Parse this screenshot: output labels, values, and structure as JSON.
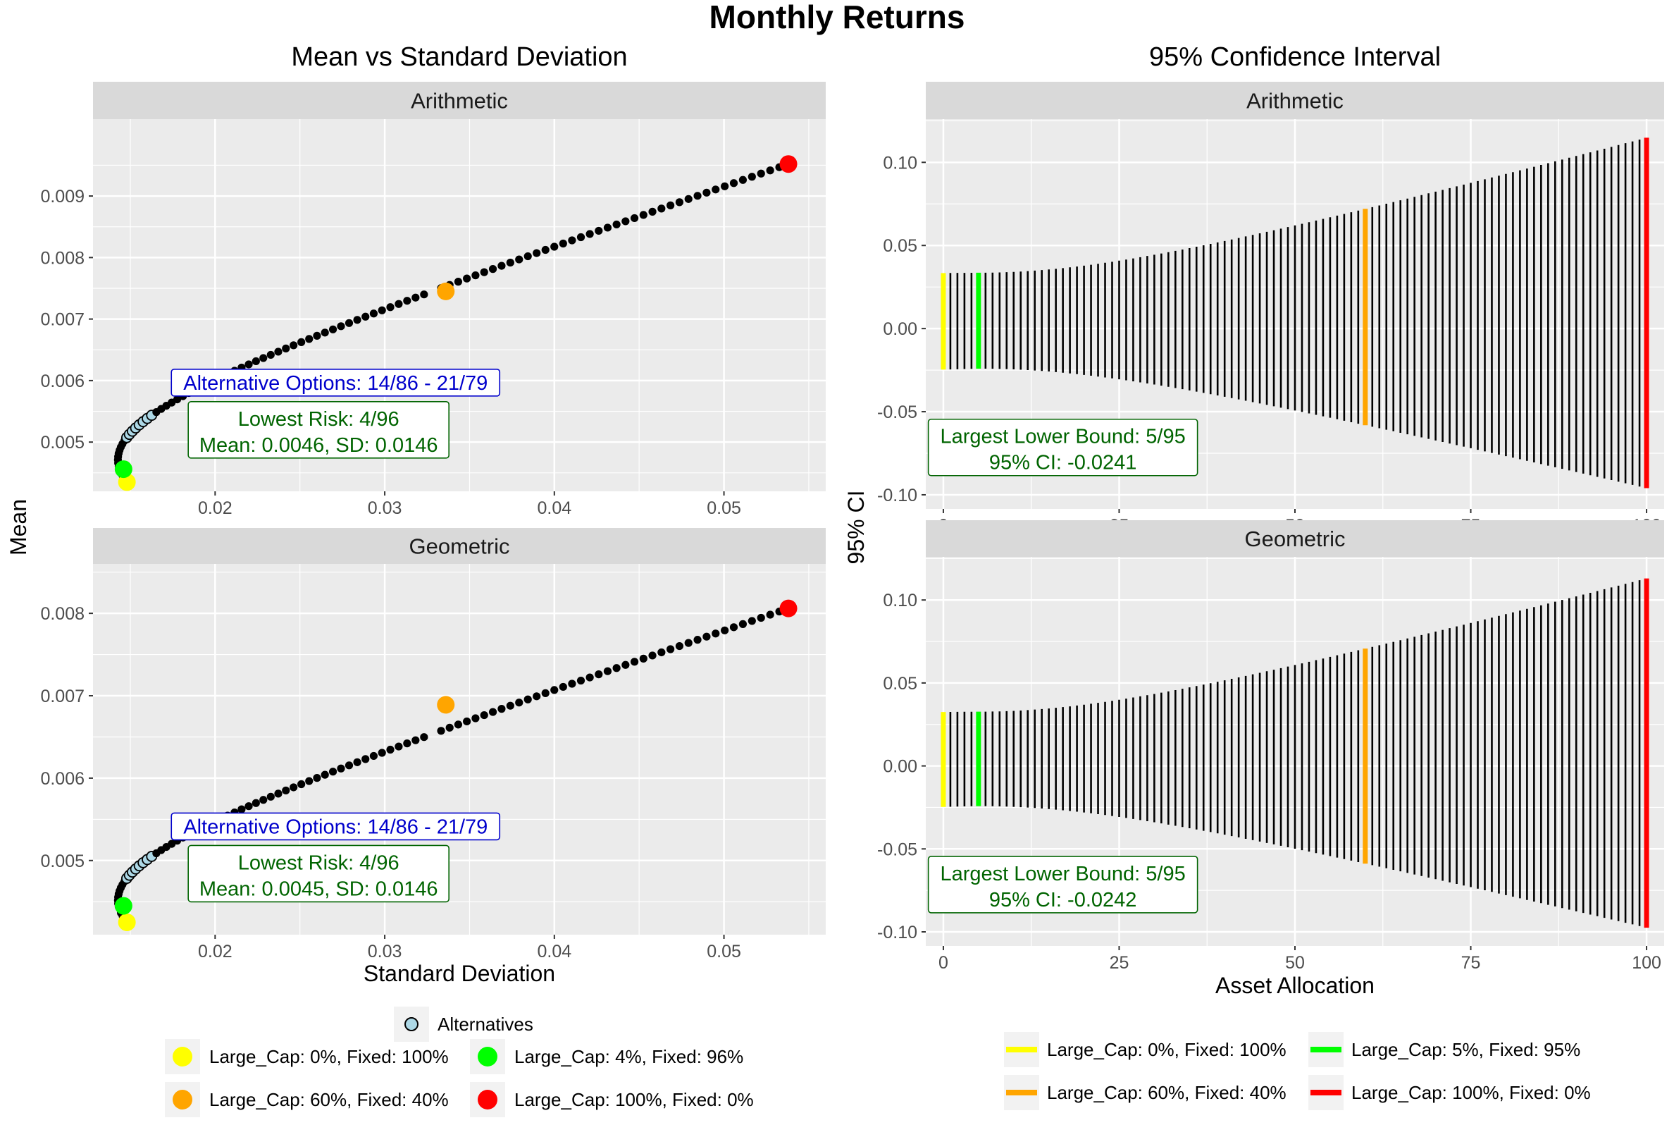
{
  "title": "Monthly Returns",
  "colors": {
    "panel_bg": "#ebebeb",
    "strip_bg": "#d9d9d9",
    "grid": "#ffffff",
    "point": "#000000",
    "alternative": "#add8e6",
    "large0": "#ffff00",
    "min_risk": "#00ff00",
    "large60": "#ffa500",
    "large100": "#ff0000",
    "annotation_blue": "#0000cc",
    "annotation_green": "#006400"
  },
  "left": {
    "subtitle": "Mean vs Standard Deviation",
    "ylabel": "Mean",
    "xlabel": "Standard Deviation",
    "panels": [
      {
        "strip": "Arithmetic",
        "alt_label": "Alternative Options: 14/86 - 21/79",
        "risk_line1": "Lowest Risk: 4/96",
        "risk_line2": "Mean: 0.0046, SD: 0.0146"
      },
      {
        "strip": "Geometric",
        "alt_label": "Alternative Options: 14/86 - 21/79",
        "risk_line1": "Lowest Risk: 4/96",
        "risk_line2": "Mean: 0.0045, SD: 0.0146"
      }
    ],
    "legend": {
      "alternatives": "Alternatives",
      "items": [
        "Large_Cap: 0%,  Fixed: 100%",
        "Large_Cap: 4%,  Fixed: 96%",
        "Large_Cap: 60%,  Fixed: 40%",
        "Large_Cap: 100%,  Fixed: 0%"
      ]
    }
  },
  "right": {
    "subtitle": "95% Confidence Interval",
    "ylabel": "95% CI",
    "xlabel": "Asset Allocation",
    "panels": [
      {
        "strip": "Arithmetic",
        "lb_line1": "Largest Lower Bound: 5/95",
        "lb_line2": "95% CI: -0.0241"
      },
      {
        "strip": "Geometric",
        "lb_line1": "Largest Lower Bound: 5/95",
        "lb_line2": "95% CI: -0.0242"
      }
    ],
    "legend": {
      "items": [
        "Large_Cap: 0%,  Fixed: 100%",
        "Large_Cap: 5%,  Fixed: 95%",
        "Large_Cap: 60%,  Fixed: 40%",
        "Large_Cap: 100%,  Fixed: 0%"
      ]
    }
  },
  "chart_data": [
    {
      "type": "scatter",
      "title": "Mean vs Standard Deviation",
      "facet": "Arithmetic",
      "xlabel": "Standard Deviation",
      "ylabel": "Mean",
      "xlim": [
        0.0128,
        0.056
      ],
      "ylim": [
        0.0042,
        0.01025
      ],
      "x_ticks": [
        "0.02",
        "0.03",
        "0.04",
        "0.05"
      ],
      "y_ticks": [
        "0.005",
        "0.006",
        "0.007",
        "0.008",
        "0.009"
      ],
      "curve_params": {
        "sd_fixed": 0.0148,
        "sd_large": 0.0538,
        "corr": 0.0,
        "mean_fixed": 0.00435,
        "mean_large": 0.00952
      },
      "allocations": "0 to 100 percent Large_Cap in steps of 1",
      "highlights": [
        {
          "allocation": 0,
          "sd": 0.0148,
          "mean": 0.00435,
          "label": "Large_Cap: 0%,  Fixed: 100%"
        },
        {
          "allocation": 4,
          "sd": 0.0146,
          "mean": 0.00456,
          "label": "Large_Cap: 4%,  Fixed: 96%"
        },
        {
          "allocation": 60,
          "sd": 0.0336,
          "mean": 0.00745,
          "label": "Large_Cap: 60%,  Fixed: 40%"
        },
        {
          "allocation": 100,
          "sd": 0.0538,
          "mean": 0.00952,
          "label": "Large_Cap: 100%,  Fixed: 0%"
        }
      ],
      "alternatives": [
        14,
        21
      ]
    },
    {
      "type": "scatter",
      "title": "Mean vs Standard Deviation",
      "facet": "Geometric",
      "xlabel": "Standard Deviation",
      "ylabel": "Mean",
      "xlim": [
        0.0128,
        0.056
      ],
      "ylim": [
        0.0041,
        0.0086
      ],
      "x_ticks": [
        "0.02",
        "0.03",
        "0.04",
        "0.05"
      ],
      "y_ticks": [
        "0.005",
        "0.006",
        "0.007",
        "0.008"
      ],
      "curve_params": {
        "sd_fixed": 0.0148,
        "sd_large": 0.0538,
        "corr": 0.0,
        "mean_fixed": 0.00425,
        "mean_large": 0.00806
      },
      "allocations": "0 to 100 percent Large_Cap in steps of 1",
      "highlights": [
        {
          "allocation": 0,
          "sd": 0.0148,
          "mean": 0.00425,
          "label": "Large_Cap: 0%,  Fixed: 100%"
        },
        {
          "allocation": 4,
          "sd": 0.0146,
          "mean": 0.00445,
          "label": "Large_Cap: 4%,  Fixed: 96%"
        },
        {
          "allocation": 60,
          "sd": 0.0336,
          "mean": 0.00689,
          "label": "Large_Cap: 60%,  Fixed: 40%"
        },
        {
          "allocation": 100,
          "sd": 0.0538,
          "mean": 0.00806,
          "label": "Large_Cap: 100%,  Fixed: 0%"
        }
      ],
      "alternatives": [
        14,
        21
      ]
    },
    {
      "type": "errorbar",
      "title": "95% Confidence Interval",
      "facet": "Arithmetic",
      "xlabel": "Asset Allocation",
      "ylabel": "95% CI",
      "xlim": [
        -2.5,
        102.5
      ],
      "ylim": [
        -0.1085,
        0.126
      ],
      "x_ticks": [
        "0",
        "25",
        "50",
        "75",
        "100"
      ],
      "y_ticks": [
        "-0.10",
        "-0.05",
        "0.00",
        "0.05",
        "0.10"
      ],
      "interval_ends": {
        "upper_at_0": 0.0334,
        "upper_at_min": 0.0336,
        "upper_at_100": 0.1148,
        "lower_at_0": -0.0247,
        "lower_at_min": -0.0241,
        "lower_at_100": -0.096,
        "min_allocation": 5
      },
      "highlights": [
        {
          "allocation": 0,
          "label": "Large_Cap: 0%,  Fixed: 100%"
        },
        {
          "allocation": 5,
          "label": "Large_Cap: 5%,  Fixed: 95%"
        },
        {
          "allocation": 60,
          "label": "Large_Cap: 60%,  Fixed: 40%"
        },
        {
          "allocation": 100,
          "label": "Large_Cap: 100%,  Fixed: 0%"
        }
      ]
    },
    {
      "type": "errorbar",
      "title": "95% Confidence Interval",
      "facet": "Geometric",
      "xlabel": "Asset Allocation",
      "ylabel": "95% CI",
      "xlim": [
        -2.5,
        102.5
      ],
      "ylim": [
        -0.1085,
        0.126
      ],
      "x_ticks": [
        "0",
        "25",
        "50",
        "75",
        "100"
      ],
      "y_ticks": [
        "-0.10",
        "-0.05",
        "0.00",
        "0.05",
        "0.10"
      ],
      "interval_ends": {
        "upper_at_0": 0.0325,
        "upper_at_min": 0.0327,
        "upper_at_100": 0.113,
        "lower_at_0": -0.0247,
        "lower_at_min": -0.0242,
        "lower_at_100": -0.0975,
        "min_allocation": 5
      },
      "highlights": [
        {
          "allocation": 0,
          "label": "Large_Cap: 0%,  Fixed: 100%"
        },
        {
          "allocation": 5,
          "label": "Large_Cap: 5%,  Fixed: 95%"
        },
        {
          "allocation": 60,
          "label": "Large_Cap: 60%,  Fixed: 40%"
        },
        {
          "allocation": 100,
          "label": "Large_Cap: 100%,  Fixed: 0%"
        }
      ]
    }
  ]
}
